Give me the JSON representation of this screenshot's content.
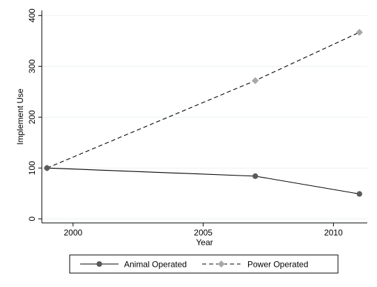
{
  "chart_data": {
    "type": "line",
    "title": "",
    "xlabel": "Year",
    "ylabel": "Implement Use",
    "xlim": [
      1998.8,
      2011.3
    ],
    "ylim": [
      -8,
      410
    ],
    "xticks": [
      2000,
      2005,
      2010
    ],
    "yticks": [
      0,
      100,
      200,
      300,
      400
    ],
    "grid": "horizontal",
    "legend_position": "bottom",
    "series": [
      {
        "name": "Animal Operated",
        "line_style": "solid",
        "marker": "circle",
        "color": "#5a5a5a",
        "points": [
          {
            "x": 1999,
            "y": 100
          },
          {
            "x": 2007,
            "y": 84
          },
          {
            "x": 2011,
            "y": 49
          }
        ]
      },
      {
        "name": "Power Operated",
        "line_style": "dashed",
        "marker": "diamond",
        "color": "#a8a8a8",
        "points": [
          {
            "x": 1999,
            "y": 100
          },
          {
            "x": 2007,
            "y": 272
          },
          {
            "x": 2011,
            "y": 367
          }
        ]
      }
    ]
  }
}
